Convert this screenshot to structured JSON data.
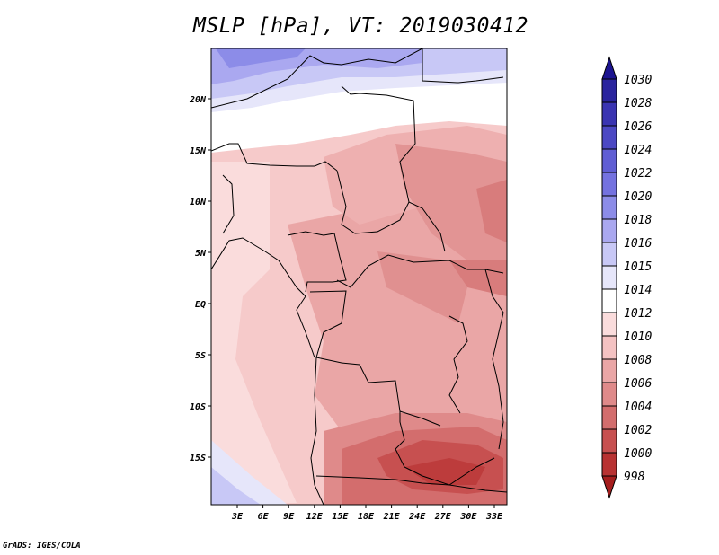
{
  "title": "MSLP [hPa], VT: 2019030412",
  "credit": "GrADS: IGES/COLA",
  "map": {
    "lat_ticks": [
      "20N",
      "15N",
      "10N",
      "5N",
      "EQ",
      "5S",
      "10S",
      "15S"
    ],
    "lon_ticks": [
      "3E",
      "6E",
      "9E",
      "12E",
      "15E",
      "18E",
      "21E",
      "24E",
      "27E",
      "30E",
      "33E"
    ]
  },
  "colorbar": {
    "levels": [
      "1030",
      "1028",
      "1026",
      "1024",
      "1022",
      "1020",
      "1018",
      "1016",
      "1015",
      "1014",
      "1012",
      "1010",
      "1008",
      "1006",
      "1004",
      "1002",
      "1000",
      "998"
    ],
    "colors": [
      "#1c1490",
      "#2a249e",
      "#3a34b2",
      "#4c48c4",
      "#605ed4",
      "#7472e0",
      "#8c8ce8",
      "#aaa8f0",
      "#c8c8f6",
      "#e6e6fa",
      "#ffffff",
      "#fadcdc",
      "#f4c2c2",
      "#eaa6a6",
      "#df8a8a",
      "#d36d6d",
      "#c75050",
      "#b83232",
      "#a51d1d"
    ]
  }
}
